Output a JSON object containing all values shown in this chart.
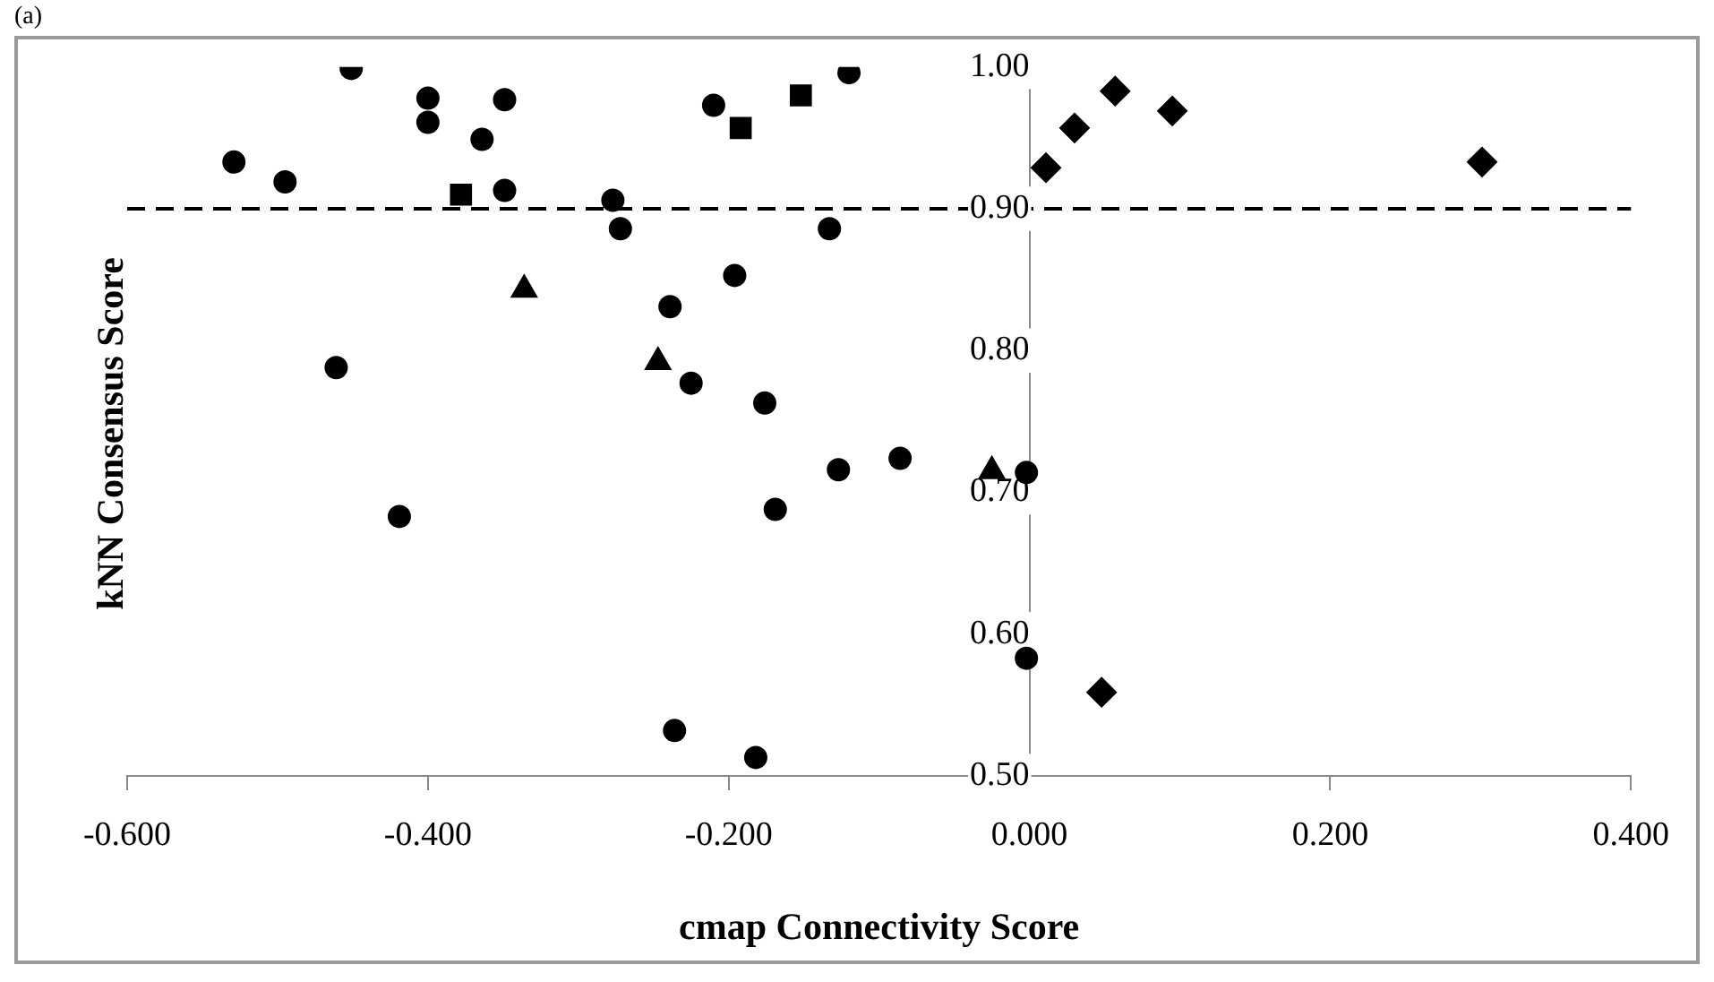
{
  "chart_data": {
    "type": "scatter",
    "xlabel": "cmap Connectivity Score",
    "ylabel": "kNN Consensus Score",
    "annotations": [
      "(a)"
    ],
    "xlim": [
      -0.6,
      0.4
    ],
    "xticks": [
      {
        "value": -0.6,
        "label": "-0.600"
      },
      {
        "value": -0.4,
        "label": "-0.400"
      },
      {
        "value": -0.2,
        "label": "-0.200"
      },
      {
        "value": 0,
        "label": "0.000"
      },
      {
        "value": 0.2,
        "label": "0.200"
      },
      {
        "value": 0.4,
        "label": "0.400"
      }
    ],
    "ylim": [
      0.5,
      1.0
    ],
    "yticks": [
      {
        "value": 0.5,
        "label": "0.50"
      },
      {
        "value": 0.6,
        "label": "0.60"
      },
      {
        "value": 0.7,
        "label": "0.70"
      },
      {
        "value": 0.8,
        "label": "0.80"
      },
      {
        "value": 0.9,
        "label": "0.90"
      },
      {
        "value": 1.0,
        "label": "1.00"
      }
    ],
    "grid": false,
    "legend": false,
    "ref_lines": [
      {
        "axis": "y",
        "value": 0.9,
        "line_style": "dashed",
        "color": "#000000"
      }
    ],
    "series": [
      {
        "color": "#000000",
        "marker": "circle",
        "x": [
          -0.529,
          -0.495,
          -0.451,
          -0.4,
          -0.4,
          -0.349,
          -0.364,
          -0.349,
          -0.461,
          -0.419,
          -0.277,
          -0.272,
          -0.21,
          -0.12,
          -0.239,
          -0.196,
          -0.225,
          -0.176,
          -0.133,
          -0.127,
          -0.169,
          -0.086,
          -0.002,
          -0.002,
          -0.236,
          -0.182
        ],
        "values": [
          0.933,
          0.919,
          0.999,
          0.978,
          0.961,
          0.977,
          0.949,
          0.913,
          0.788,
          0.683,
          0.906,
          0.886,
          0.973,
          0.996,
          0.831,
          0.853,
          0.777,
          0.763,
          0.886,
          0.716,
          0.688,
          0.724,
          0.714,
          0.583,
          0.532,
          0.513
        ]
      },
      {
        "color": "#000000",
        "marker": "square",
        "x": [
          -0.378,
          -0.192,
          -0.152
        ],
        "values": [
          0.91,
          0.957,
          0.98
        ]
      },
      {
        "color": "#000000",
        "marker": "triangle",
        "x": [
          -0.336,
          -0.247,
          -0.025
        ],
        "values": [
          0.843,
          0.792,
          0.715
        ]
      },
      {
        "color": "#000000",
        "marker": "diamond",
        "x": [
          0.011,
          0.03,
          0.057,
          0.095,
          0.301,
          0.048
        ],
        "values": [
          0.929,
          0.957,
          0.983,
          0.969,
          0.933,
          0.559
        ]
      }
    ]
  }
}
